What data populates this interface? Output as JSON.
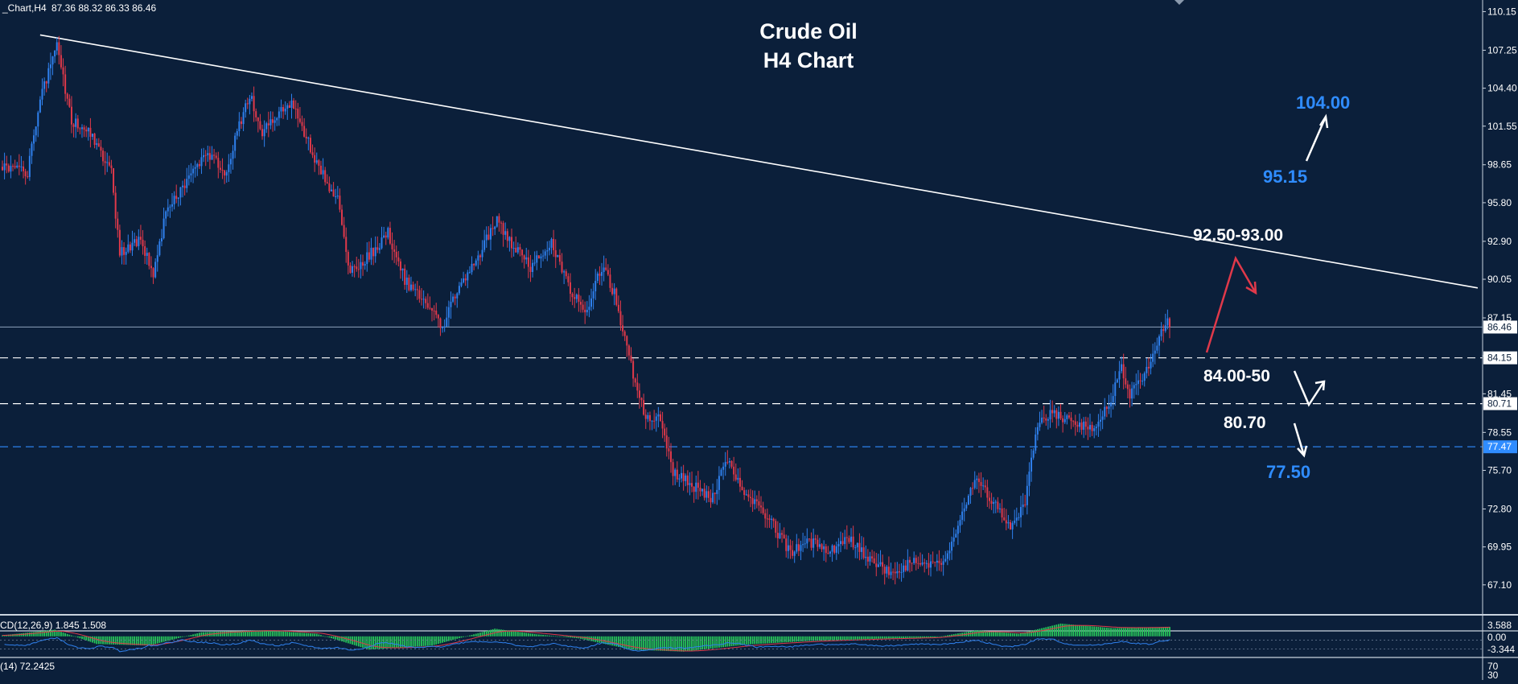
{
  "header": {
    "symbol_label": "_Chart,H4",
    "ohlc": "87.36 88.32 86.33 86.46"
  },
  "title_line1": "Crude Oil",
  "title_line2": "H4 Chart",
  "colors": {
    "background": "#0b1f3a",
    "bull": "#2f80ed",
    "bear": "#e0394a",
    "accent_blue": "#2f8cff",
    "white": "#ffffff",
    "macd_hist": "#27c45a",
    "signal": "#e0394a",
    "rsi": "#2f80ed"
  },
  "chart_data": {
    "type": "candlestick",
    "instrument": "Crude Oil",
    "timeframe": "H4",
    "current_price": 86.46,
    "price_axis": {
      "ticks": [
        "110.15",
        "107.25",
        "104.40",
        "101.55",
        "98.65",
        "95.80",
        "92.90",
        "90.05",
        "87.15",
        "84.30",
        "81.45",
        "78.55",
        "75.70",
        "72.80",
        "69.95",
        "67.10"
      ],
      "range": [
        66.0,
        110.6
      ],
      "highlight_labels": [
        {
          "value": 86.46,
          "label": "86.46",
          "style": "white"
        },
        {
          "value": 84.15,
          "label": "84.15",
          "style": "white"
        },
        {
          "value": 80.71,
          "label": "80.71",
          "style": "white"
        },
        {
          "value": 77.47,
          "label": "77.47",
          "style": "blue"
        }
      ]
    },
    "key_points": [
      {
        "i": 0,
        "p": 98.5
      },
      {
        "i": 12,
        "p": 98.0
      },
      {
        "i": 18,
        "p": 103.5
      },
      {
        "i": 26,
        "p": 107.5
      },
      {
        "i": 33,
        "p": 102.0
      },
      {
        "i": 42,
        "p": 101.0
      },
      {
        "i": 52,
        "p": 98.0
      },
      {
        "i": 56,
        "p": 92.0
      },
      {
        "i": 66,
        "p": 93.0
      },
      {
        "i": 72,
        "p": 90.5
      },
      {
        "i": 78,
        "p": 95.0
      },
      {
        "i": 90,
        "p": 98.0
      },
      {
        "i": 98,
        "p": 99.5
      },
      {
        "i": 106,
        "p": 98.0
      },
      {
        "i": 118,
        "p": 104.0
      },
      {
        "i": 124,
        "p": 101.0
      },
      {
        "i": 138,
        "p": 103.5
      },
      {
        "i": 148,
        "p": 99.5
      },
      {
        "i": 156,
        "p": 97.0
      },
      {
        "i": 160,
        "p": 96.0
      },
      {
        "i": 166,
        "p": 90.5
      },
      {
        "i": 176,
        "p": 92.0
      },
      {
        "i": 184,
        "p": 93.5
      },
      {
        "i": 192,
        "p": 90.0
      },
      {
        "i": 200,
        "p": 88.5
      },
      {
        "i": 210,
        "p": 86.5
      },
      {
        "i": 216,
        "p": 89.0
      },
      {
        "i": 226,
        "p": 91.5
      },
      {
        "i": 236,
        "p": 94.5
      },
      {
        "i": 244,
        "p": 92.5
      },
      {
        "i": 252,
        "p": 91.0
      },
      {
        "i": 262,
        "p": 93.0
      },
      {
        "i": 270,
        "p": 89.5
      },
      {
        "i": 278,
        "p": 87.5
      },
      {
        "i": 286,
        "p": 91.0
      },
      {
        "i": 292,
        "p": 89.0
      },
      {
        "i": 300,
        "p": 83.5
      },
      {
        "i": 306,
        "p": 80.0
      },
      {
        "i": 314,
        "p": 79.5
      },
      {
        "i": 320,
        "p": 75.5
      },
      {
        "i": 330,
        "p": 74.5
      },
      {
        "i": 338,
        "p": 73.5
      },
      {
        "i": 346,
        "p": 76.5
      },
      {
        "i": 354,
        "p": 74.0
      },
      {
        "i": 366,
        "p": 72.0
      },
      {
        "i": 376,
        "p": 69.5
      },
      {
        "i": 384,
        "p": 70.5
      },
      {
        "i": 394,
        "p": 69.5
      },
      {
        "i": 404,
        "p": 70.5
      },
      {
        "i": 414,
        "p": 69.0
      },
      {
        "i": 424,
        "p": 68.0
      },
      {
        "i": 434,
        "p": 68.8
      },
      {
        "i": 444,
        "p": 68.5
      },
      {
        "i": 452,
        "p": 69.5
      },
      {
        "i": 458,
        "p": 72.5
      },
      {
        "i": 464,
        "p": 75.0
      },
      {
        "i": 472,
        "p": 73.5
      },
      {
        "i": 480,
        "p": 71.5
      },
      {
        "i": 484,
        "p": 72.0
      },
      {
        "i": 488,
        "p": 73.5
      },
      {
        "i": 494,
        "p": 79.0
      },
      {
        "i": 500,
        "p": 80.0
      },
      {
        "i": 510,
        "p": 79.5
      },
      {
        "i": 520,
        "p": 78.8
      },
      {
        "i": 528,
        "p": 80.5
      },
      {
        "i": 534,
        "p": 83.5
      },
      {
        "i": 538,
        "p": 81.5
      },
      {
        "i": 544,
        "p": 82.5
      },
      {
        "i": 550,
        "p": 84.5
      },
      {
        "i": 555,
        "p": 87.0
      },
      {
        "i": 557,
        "p": 86.46
      }
    ],
    "trendline": [
      {
        "i": 18,
        "p": 108.4
      },
      {
        "i": 704,
        "p": 89.4
      }
    ],
    "horizontal_lines": [
      {
        "value": 86.46,
        "style": "solid",
        "color": "#7f93ad"
      },
      {
        "value": 84.15,
        "style": "dashed",
        "color": "#ffffff"
      },
      {
        "value": 80.71,
        "style": "dashed",
        "color": "#ffffff"
      },
      {
        "value": 77.47,
        "style": "dashed",
        "color": "#2f8cff"
      }
    ],
    "annotations": [
      {
        "text": "104.00",
        "color": "blue"
      },
      {
        "text": "95.15",
        "color": "blue"
      },
      {
        "text": "92.50-93.00",
        "color": "white"
      },
      {
        "text": "84.00-50",
        "color": "white"
      },
      {
        "text": "80.70",
        "color": "white"
      },
      {
        "text": "77.50",
        "color": "blue"
      }
    ],
    "macd": {
      "label": "CD(12,26,9) 1.845 1.508",
      "axis_ticks": [
        "3.588",
        "0.00",
        "-3.344"
      ],
      "range": [
        -3.344,
        3.588
      ],
      "key_points": [
        {
          "i": 0,
          "v": 0.2
        },
        {
          "i": 25,
          "v": 1.3
        },
        {
          "i": 45,
          "v": -1.5
        },
        {
          "i": 70,
          "v": -1.8
        },
        {
          "i": 95,
          "v": 0.8
        },
        {
          "i": 125,
          "v": 1.2
        },
        {
          "i": 150,
          "v": 0.5
        },
        {
          "i": 175,
          "v": -2.6
        },
        {
          "i": 205,
          "v": -1.8
        },
        {
          "i": 235,
          "v": 1.5
        },
        {
          "i": 255,
          "v": 0.4
        },
        {
          "i": 275,
          "v": -0.4
        },
        {
          "i": 300,
          "v": -2.6
        },
        {
          "i": 325,
          "v": -3.0
        },
        {
          "i": 355,
          "v": -1.6
        },
        {
          "i": 385,
          "v": -0.9
        },
        {
          "i": 415,
          "v": -0.5
        },
        {
          "i": 445,
          "v": -0.2
        },
        {
          "i": 465,
          "v": 1.2
        },
        {
          "i": 485,
          "v": 0.5
        },
        {
          "i": 505,
          "v": 2.5
        },
        {
          "i": 530,
          "v": 1.6
        },
        {
          "i": 557,
          "v": 1.845
        }
      ]
    },
    "rsi": {
      "label": "(14) 72.2425",
      "axis_ticks": [
        "70",
        "30"
      ],
      "range": [
        0,
        100
      ]
    }
  }
}
